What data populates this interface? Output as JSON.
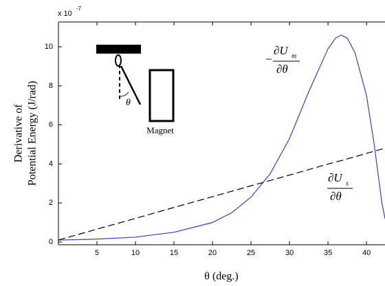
{
  "chart_data": {
    "type": "line",
    "multiplier": {
      "base": "x 10",
      "exponent": "-7"
    },
    "xlabel": "θ (deg.)",
    "ylabel": [
      "Derivative of",
      "Potential Energy  (J/rad)"
    ],
    "x": [
      0,
      5,
      10,
      15,
      20,
      22.5,
      25,
      27.5,
      30,
      32.5,
      35,
      36,
      36.7,
      37.5,
      38.5,
      40,
      41,
      42,
      42.4
    ],
    "series": [
      {
        "color": "#3a3ad6",
        "dash": "solid",
        "values": [
          0.1,
          0.15,
          0.25,
          0.5,
          1.0,
          1.5,
          2.3,
          3.5,
          5.3,
          7.7,
          9.9,
          10.45,
          10.6,
          10.45,
          9.7,
          7.5,
          5.0,
          2.0,
          1.2
        ]
      },
      {
        "color": "#000000",
        "dash": "dashed",
        "values": [
          0.1,
          0.66,
          1.21,
          1.77,
          2.32,
          2.6,
          2.88,
          3.15,
          3.43,
          3.71,
          3.99,
          4.1,
          4.17,
          4.26,
          4.37,
          4.54,
          4.65,
          4.76,
          4.81
        ]
      }
    ],
    "annotations": [
      {
        "minus": "−",
        "num": "∂U",
        "sub": "m",
        "den": "∂θ"
      },
      {
        "num": "∂U",
        "sub": "s",
        "den": "∂θ"
      }
    ],
    "inset": {
      "angle": "θ",
      "label": "Magnet"
    },
    "xlim": [
      0,
      42.4
    ],
    "ylim": [
      -0.14,
      11.27
    ],
    "xticks": [
      5,
      10,
      15,
      20,
      25,
      30,
      35,
      40
    ],
    "yticks": [
      0,
      2,
      4,
      6,
      8,
      10
    ]
  }
}
